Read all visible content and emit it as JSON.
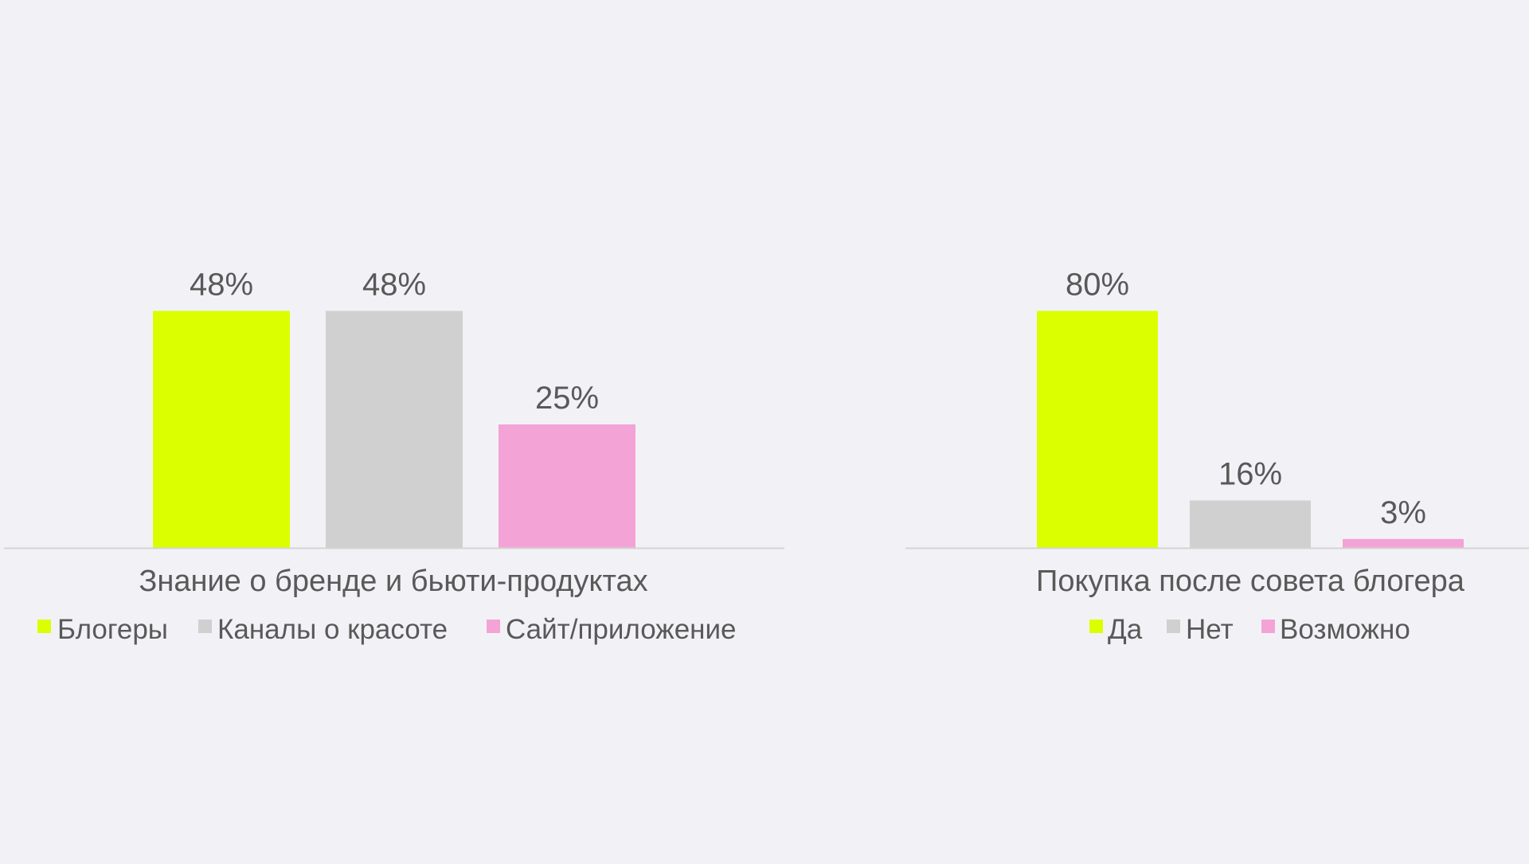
{
  "colors": {
    "background": "#f2f2f6",
    "text": "#595959",
    "axis": "#d4d4d4",
    "green": "#dcff00",
    "grey": "#d0d0d0",
    "pink": "#f4a3d6"
  },
  "chart_data": [
    {
      "type": "bar",
      "title": "Знание о бренде и бьюти-продуктах",
      "ylim": [
        0,
        100
      ],
      "grid": false,
      "legend_position": "bottom",
      "series": [
        {
          "name": "Блогеры",
          "values": [
            48
          ],
          "labels": [
            "48%"
          ],
          "color": "#dcff00"
        },
        {
          "name": "Каналы о красоте",
          "values": [
            48
          ],
          "labels": [
            "48%"
          ],
          "color": "#d0d0d0"
        },
        {
          "name": "Сайт/приложение",
          "values": [
            25
          ],
          "labels": [
            "25%"
          ],
          "color": "#f4a3d6"
        }
      ]
    },
    {
      "type": "bar",
      "title": "Покупка после совета блогера",
      "ylim": [
        0,
        100
      ],
      "grid": false,
      "legend_position": "bottom",
      "series": [
        {
          "name": "Да",
          "values": [
            80
          ],
          "labels": [
            "80%"
          ],
          "color": "#dcff00"
        },
        {
          "name": "Нет",
          "values": [
            16
          ],
          "labels": [
            "16%"
          ],
          "color": "#d0d0d0"
        },
        {
          "name": "Возможно",
          "values": [
            3
          ],
          "labels": [
            "3%"
          ],
          "color": "#f4a3d6"
        }
      ]
    }
  ]
}
